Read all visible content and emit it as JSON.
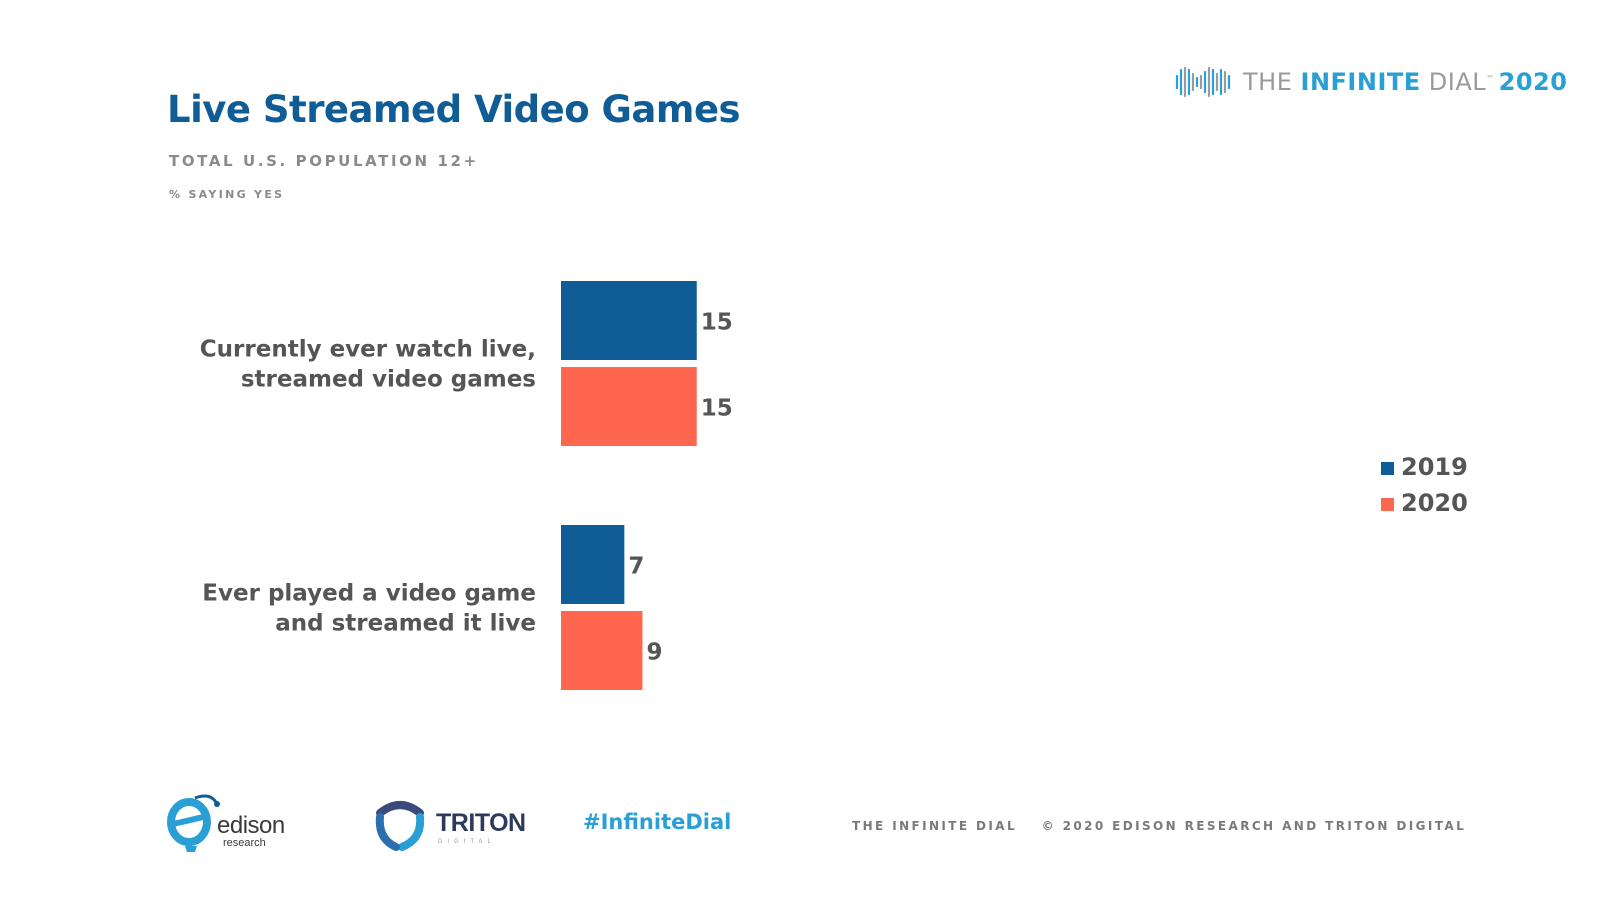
{
  "header": {
    "title": "Live Streamed Video Games",
    "subtitle": "TOTAL U.S. POPULATION 12+",
    "note": "% SAYING YES"
  },
  "brand": {
    "the": "THE",
    "infinite": "INFINITE",
    "dial": "DIAL",
    "trademark": "™",
    "year": "2020"
  },
  "chart_data": {
    "type": "bar",
    "orientation": "horizontal",
    "title": "Live Streamed Video Games",
    "subtitle": "TOTAL U.S. POPULATION 12+",
    "unit_note": "% SAYING YES",
    "categories": [
      [
        "Currently ever watch live,",
        "streamed video games"
      ],
      [
        "Ever played a video game",
        "and streamed it live"
      ]
    ],
    "series": [
      {
        "name": "2019",
        "color": "#0f5c96",
        "values": [
          15,
          7
        ]
      },
      {
        "name": "2020",
        "color": "#ff6650",
        "values": [
          15,
          9
        ]
      }
    ],
    "xlim": [
      0,
      70
    ],
    "grid": false,
    "legend_position": "right",
    "data_labels": true
  },
  "footer": {
    "hashtag": "#InfiniteDial",
    "left_text": "THE INFINITE DIAL",
    "right_text": "© 2020 EDISON RESEARCH AND TRITON DIGITAL",
    "edison_word": "edison",
    "edison_sub": "research",
    "triton_word": "TRITON",
    "triton_sub": "DIGITAL"
  }
}
